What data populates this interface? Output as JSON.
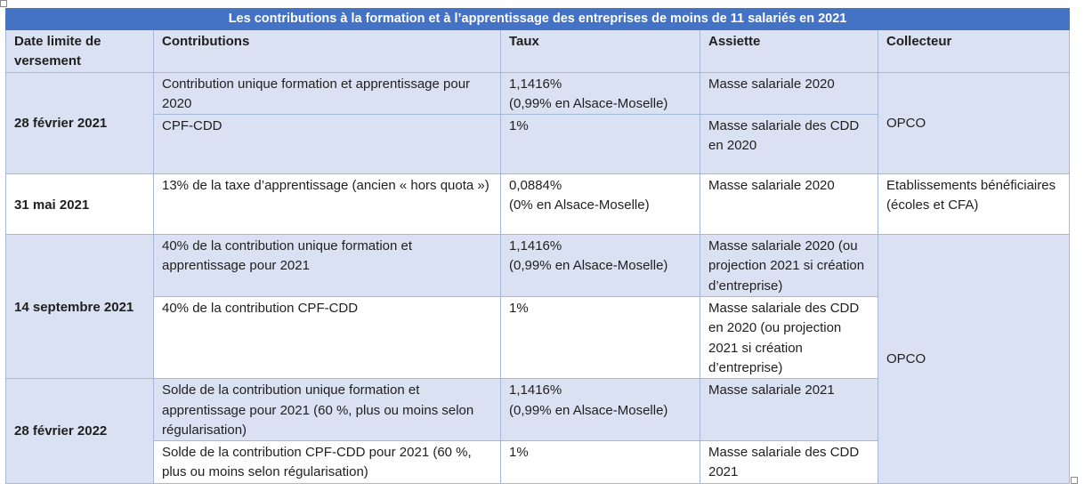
{
  "table": {
    "title": "Les contributions à la formation et à l’apprentissage des entreprises de moins de 11 salariés en 2021",
    "headers": {
      "date": "Date limite de versement",
      "contributions": "Contributions",
      "taux": "Taux",
      "assiette": "Assiette",
      "collecteur": "Collecteur"
    },
    "groups": [
      {
        "date": "28 février 2021",
        "collecteur": "OPCO",
        "rows": [
          {
            "contribution": "Contribution unique formation et apprentissage pour 2020",
            "taux": "1,1416%",
            "taux_note": "(0,99% en Alsace-Moselle)",
            "assiette": "Masse salariale 2020"
          },
          {
            "contribution": "CPF-CDD",
            "taux": "1%",
            "taux_note": "",
            "assiette": "Masse salariale des CDD en 2020"
          }
        ]
      },
      {
        "date": "31 mai 2021",
        "collecteur": "Etablissements bénéficiaires (écoles et CFA)",
        "rows": [
          {
            "contribution": "13% de la taxe d’apprentissage (ancien « hors quota »)",
            "taux": "0,0884%",
            "taux_note": "(0% en Alsace-Moselle)",
            "assiette": "Masse salariale 2020"
          }
        ]
      },
      {
        "date": "14 septembre 2021",
        "rows": [
          {
            "contribution": "40% de la contribution unique formation et apprentissage pour 2021",
            "taux": "1,1416%",
            "taux_note": "(0,99% en Alsace-Moselle)",
            "assiette": "Masse salariale 2020 (ou projection 2021 si création d’entreprise)"
          },
          {
            "contribution": "40% de la contribution CPF-CDD",
            "taux": "1%",
            "taux_note": "",
            "assiette": "Masse salariale des CDD en 2020 (ou projection 2021 si création d’entreprise)"
          }
        ]
      },
      {
        "date": "28 février 2022",
        "rows": [
          {
            "contribution": "Solde de la contribution unique formation et apprentissage pour 2021 (60 %, plus ou moins selon régularisation)",
            "taux": "1,1416%",
            "taux_note": "(0,99% en Alsace-Moselle)",
            "assiette": "Masse salariale 2021"
          },
          {
            "contribution": "Solde de la contribution CPF-CDD pour 2021 (60 %, plus ou moins selon régularisation)",
            "taux": "1%",
            "taux_note": "",
            "assiette": "Masse salariale des CDD 2021"
          }
        ]
      }
    ],
    "shared_collecteur": "OPCO"
  }
}
